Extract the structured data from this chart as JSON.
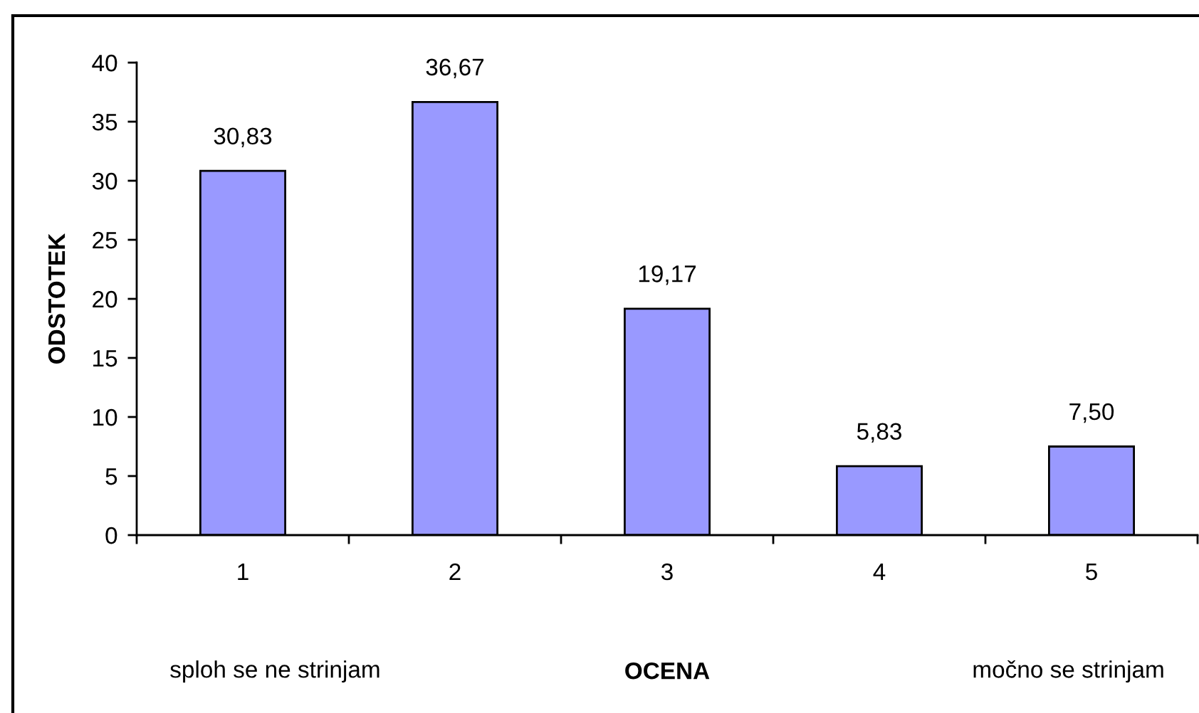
{
  "chart_data": {
    "type": "bar",
    "xlabel": "OCENA",
    "ylabel": "ODSTOTEK",
    "categories": [
      "1",
      "2",
      "3",
      "4",
      "5"
    ],
    "values": [
      30.83,
      36.67,
      19.17,
      5.83,
      7.5
    ],
    "value_labels": [
      "30,83",
      "36,67",
      "19,17",
      "5,83",
      "7,50"
    ],
    "color": "#9999ff",
    "ylim": [
      0,
      40
    ],
    "yticks": [
      0,
      5,
      10,
      15,
      20,
      25,
      30,
      35,
      40
    ],
    "annotations": [
      "sploh se ne strinjam",
      "močno se strinjam"
    ]
  }
}
